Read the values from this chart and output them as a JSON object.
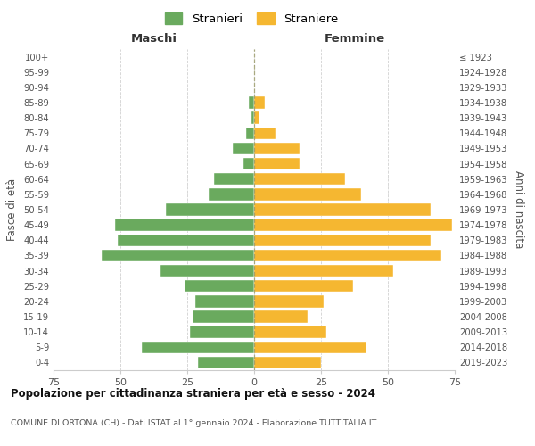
{
  "age_groups": [
    "0-4",
    "5-9",
    "10-14",
    "15-19",
    "20-24",
    "25-29",
    "30-34",
    "35-39",
    "40-44",
    "45-49",
    "50-54",
    "55-59",
    "60-64",
    "65-69",
    "70-74",
    "75-79",
    "80-84",
    "85-89",
    "90-94",
    "95-99",
    "100+"
  ],
  "birth_years": [
    "2019-2023",
    "2014-2018",
    "2009-2013",
    "2004-2008",
    "1999-2003",
    "1994-1998",
    "1989-1993",
    "1984-1988",
    "1979-1983",
    "1974-1978",
    "1969-1973",
    "1964-1968",
    "1959-1963",
    "1954-1958",
    "1949-1953",
    "1944-1948",
    "1939-1943",
    "1934-1938",
    "1929-1933",
    "1924-1928",
    "≤ 1923"
  ],
  "maschi": [
    21,
    42,
    24,
    23,
    22,
    26,
    35,
    57,
    51,
    52,
    33,
    17,
    15,
    4,
    8,
    3,
    1,
    2,
    0,
    0,
    0
  ],
  "femmine": [
    25,
    42,
    27,
    20,
    26,
    37,
    52,
    70,
    66,
    74,
    66,
    40,
    34,
    17,
    17,
    8,
    2,
    4,
    0,
    0,
    0
  ],
  "color_maschi": "#6aaa5e",
  "color_femmine": "#f5b731",
  "background_color": "#ffffff",
  "grid_color": "#cccccc",
  "title": "Popolazione per cittadinanza straniera per età e sesso - 2024",
  "subtitle": "COMUNE DI ORTONA (CH) - Dati ISTAT al 1° gennaio 2024 - Elaborazione TUTTITALIA.IT",
  "xlabel_left": "Maschi",
  "xlabel_right": "Femmine",
  "ylabel_left": "Fasce di età",
  "ylabel_right": "Anni di nascita",
  "legend_maschi": "Stranieri",
  "legend_femmine": "Straniere",
  "xlim": 75
}
